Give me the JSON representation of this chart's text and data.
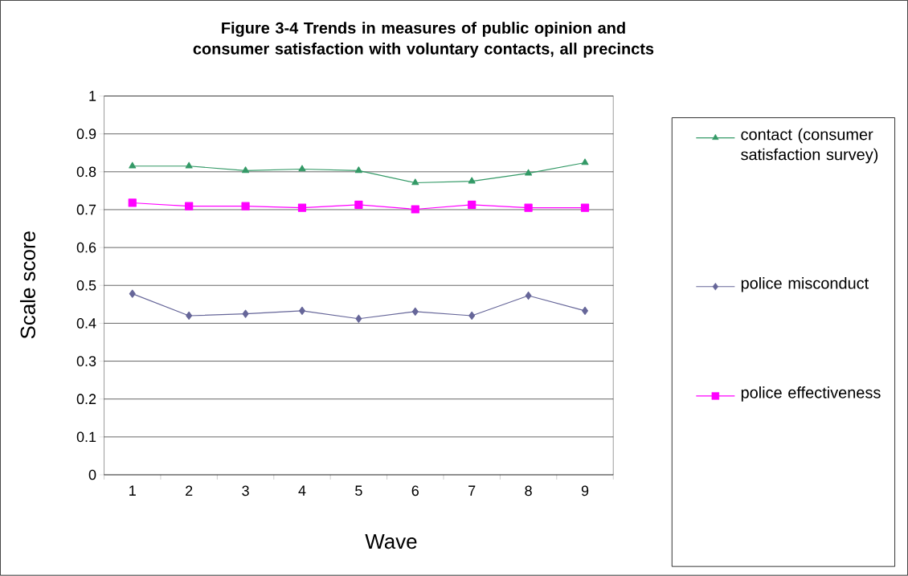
{
  "chart_data": {
    "type": "line",
    "title": "Figure 3-4 Trends in measures of public opinion and consumer satisfaction with voluntary contacts, all precincts",
    "xlabel": "Wave",
    "ylabel": "Scale score",
    "categories": [
      "1",
      "2",
      "3",
      "4",
      "5",
      "6",
      "7",
      "8",
      "9"
    ],
    "series": [
      {
        "name": "contact (consumer satisfaction survey)",
        "color": "#339966",
        "marker": "triangle",
        "values": [
          0.815,
          0.815,
          0.803,
          0.807,
          0.803,
          0.771,
          0.775,
          0.796,
          0.824
        ]
      },
      {
        "name": "police misconduct",
        "color": "#666699",
        "marker": "diamond",
        "values": [
          0.478,
          0.42,
          0.425,
          0.433,
          0.412,
          0.431,
          0.42,
          0.473,
          0.433
        ]
      },
      {
        "name": "police effectiveness",
        "color": "#ff00ff",
        "marker": "square",
        "values": [
          0.718,
          0.709,
          0.709,
          0.705,
          0.713,
          0.701,
          0.713,
          0.705,
          0.705
        ]
      }
    ],
    "ylim": [
      0,
      1
    ],
    "yticks": [
      0,
      0.1,
      0.2,
      0.3,
      0.4,
      0.5,
      0.6,
      0.7,
      0.8,
      0.9,
      1
    ],
    "grid": "y",
    "legend": "right",
    "line_style": "solid"
  }
}
